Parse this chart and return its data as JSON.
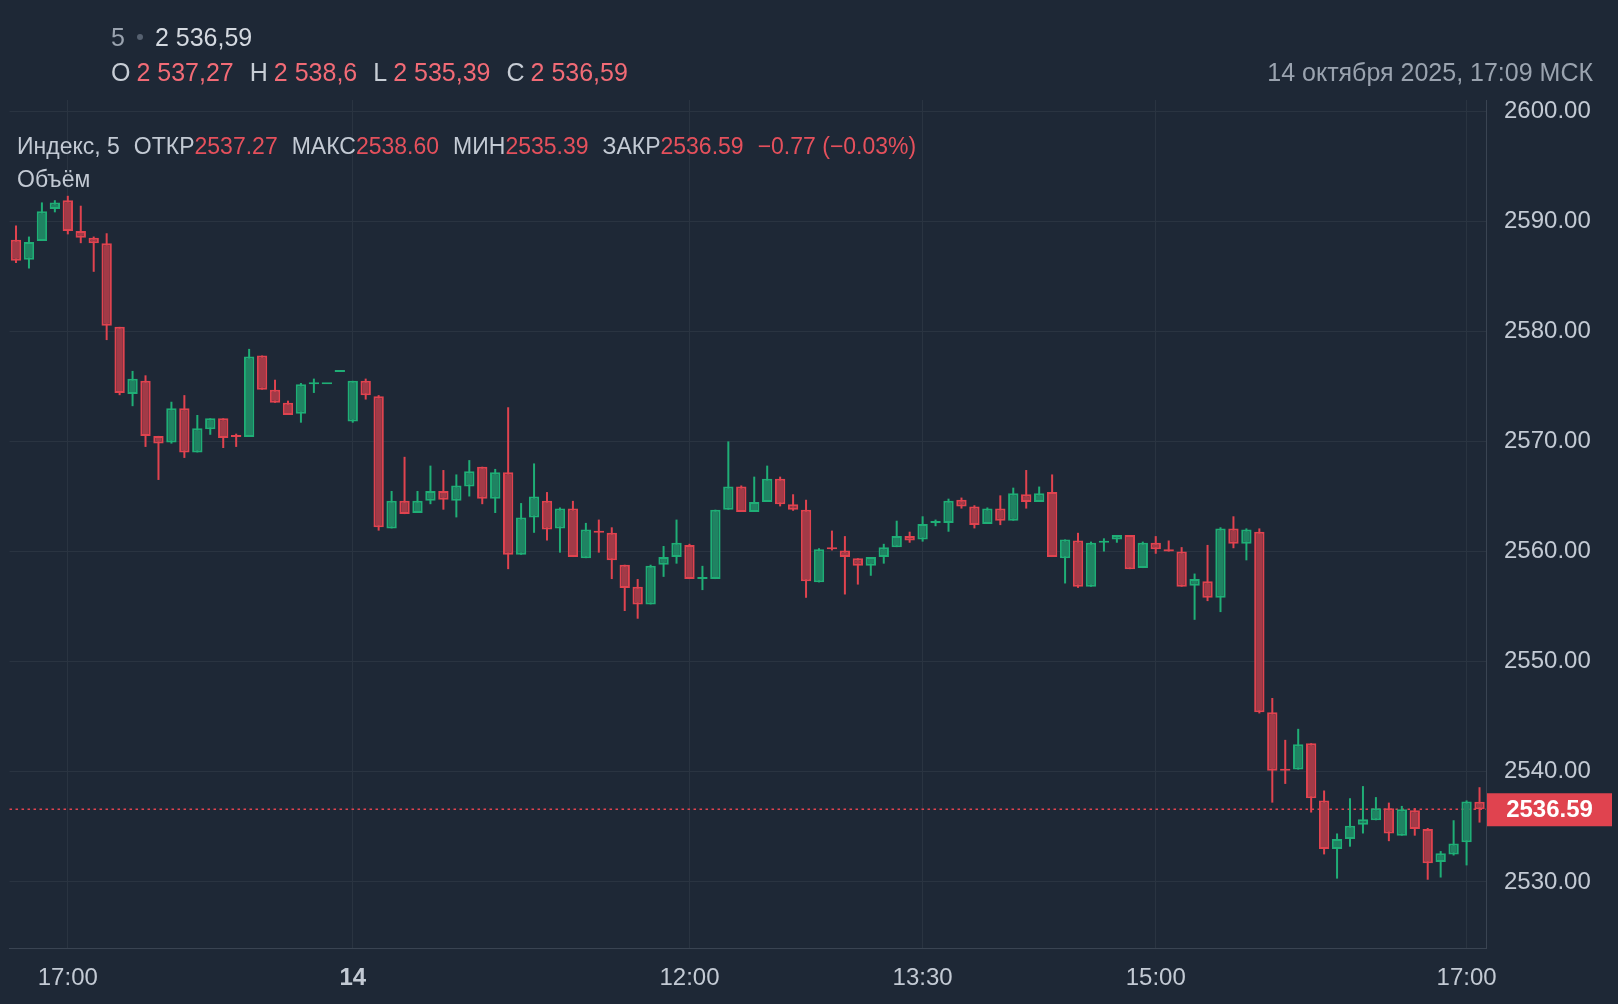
{
  "chart_data": {
    "type": "candlestick",
    "categories": [
      null,
      null,
      null,
      null,
      "17:00",
      null,
      null,
      null,
      null,
      null,
      null,
      null,
      null,
      null,
      null,
      null,
      null,
      null,
      null,
      null,
      null,
      null,
      null,
      null,
      null,
      null,
      "14",
      null,
      null,
      null,
      null,
      null,
      null,
      null,
      null,
      null,
      null,
      null,
      null,
      null,
      null,
      null,
      null,
      null,
      null,
      null,
      null,
      null,
      null,
      null,
      null,
      null,
      "12:00",
      null,
      null,
      null,
      null,
      null,
      null,
      null,
      null,
      null,
      null,
      null,
      null,
      null,
      null,
      null,
      null,
      null,
      "13:30",
      null,
      null,
      null,
      null,
      null,
      null,
      null,
      null,
      null,
      null,
      null,
      null,
      null,
      null,
      null,
      null,
      null,
      "15:00",
      null,
      null,
      null,
      null,
      null,
      null,
      null,
      null,
      null,
      null,
      null,
      null,
      null,
      null,
      null,
      null,
      null,
      null,
      null,
      null,
      null,
      null,
      null,
      "17:00",
      null
    ],
    "ohlc": [
      [
        2588.3,
        2589.6,
        2586.2,
        2586.4
      ],
      [
        2586.5,
        2588.6,
        2585.7,
        2588.1
      ],
      [
        2588.2,
        2591.7,
        2588.2,
        2590.9
      ],
      [
        2591.1,
        2591.9,
        2590.8,
        2591.7
      ],
      [
        2591.9,
        2592.3,
        2588.8,
        2589.1
      ],
      [
        2589.1,
        2591.4,
        2588.0,
        2588.5
      ],
      [
        2588.5,
        2588.6,
        2585.4,
        2588.0
      ],
      [
        2588.0,
        2588.9,
        2579.2,
        2580.5
      ],
      [
        2580.4,
        2580.4,
        2574.2,
        2574.4
      ],
      [
        2574.3,
        2576.4,
        2573.2,
        2575.7
      ],
      [
        2575.5,
        2576.0,
        2569.5,
        2570.5
      ],
      [
        2570.5,
        2570.5,
        2566.5,
        2569.8
      ],
      [
        2569.9,
        2573.6,
        2569.8,
        2573.0
      ],
      [
        2573.0,
        2574.2,
        2568.5,
        2569.0
      ],
      [
        2569.0,
        2572.4,
        2569.0,
        2571.2
      ],
      [
        2571.1,
        2572.1,
        2570.6,
        2572.1
      ],
      [
        2572.1,
        2572.1,
        2569.4,
        2570.3
      ],
      [
        2570.5,
        2570.7,
        2569.5,
        2570.4
      ],
      [
        2570.4,
        2578.4,
        2570.4,
        2577.7
      ],
      [
        2577.8,
        2577.8,
        2574.7,
        2574.7
      ],
      [
        2574.7,
        2575.6,
        2573.5,
        2573.5
      ],
      [
        2573.5,
        2573.7,
        2572.4,
        2572.4
      ],
      [
        2572.5,
        2575.3,
        2571.7,
        2575.2
      ],
      [
        2575.2,
        2575.7,
        2574.4,
        2575.2
      ],
      [
        2575.2,
        2575.2,
        2575.2,
        2575.2
      ],
      [
        2576.3,
        2576.3,
        2576.3,
        2576.3
      ],
      [
        2571.8,
        2575.5,
        2571.7,
        2575.5
      ],
      [
        2575.5,
        2575.7,
        2573.8,
        2574.2
      ],
      [
        2574.1,
        2574.2,
        2561.9,
        2562.2
      ],
      [
        2562.1,
        2565.5,
        2562.1,
        2564.6
      ],
      [
        2564.6,
        2568.6,
        2563.4,
        2563.4
      ],
      [
        2563.5,
        2565.5,
        2563.5,
        2564.6
      ],
      [
        2564.6,
        2567.8,
        2564.3,
        2565.5
      ],
      [
        2565.5,
        2567.4,
        2563.8,
        2564.7
      ],
      [
        2564.6,
        2567.0,
        2563.1,
        2566.0
      ],
      [
        2565.9,
        2568.3,
        2565.0,
        2567.3
      ],
      [
        2567.7,
        2567.7,
        2564.3,
        2564.8
      ],
      [
        2564.8,
        2567.5,
        2563.5,
        2567.2
      ],
      [
        2567.2,
        2573.1,
        2558.4,
        2559.7
      ],
      [
        2559.7,
        2564.4,
        2559.7,
        2563.1
      ],
      [
        2563.1,
        2568.0,
        2561.7,
        2565.0
      ],
      [
        2564.6,
        2565.4,
        2561.0,
        2562.0
      ],
      [
        2562.1,
        2564.0,
        2559.9,
        2563.9
      ],
      [
        2563.9,
        2564.6,
        2559.5,
        2559.5
      ],
      [
        2559.4,
        2562.6,
        2559.4,
        2562.0
      ],
      [
        2561.8,
        2562.9,
        2559.9,
        2561.7
      ],
      [
        2561.7,
        2562.2,
        2557.5,
        2559.2
      ],
      [
        2558.8,
        2558.8,
        2554.6,
        2556.7
      ],
      [
        2556.8,
        2557.5,
        2553.9,
        2555.2
      ],
      [
        2555.2,
        2558.8,
        2555.2,
        2558.7
      ],
      [
        2558.8,
        2560.5,
        2557.7,
        2559.5
      ],
      [
        2559.5,
        2562.9,
        2558.9,
        2560.8
      ],
      [
        2560.6,
        2560.7,
        2557.5,
        2557.5
      ],
      [
        2557.5,
        2558.7,
        2556.5,
        2557.6
      ],
      [
        2557.5,
        2563.8,
        2557.5,
        2563.8
      ],
      [
        2563.8,
        2570.0,
        2563.8,
        2565.9
      ],
      [
        2565.9,
        2566.0,
        2563.6,
        2563.6
      ],
      [
        2563.6,
        2566.8,
        2563.6,
        2564.5
      ],
      [
        2564.5,
        2567.8,
        2564.5,
        2566.6
      ],
      [
        2566.6,
        2566.8,
        2564.1,
        2564.3
      ],
      [
        2564.3,
        2565.2,
        2563.7,
        2563.8
      ],
      [
        2563.8,
        2564.7,
        2555.8,
        2557.3
      ],
      [
        2557.2,
        2560.3,
        2557.2,
        2560.2
      ],
      [
        2560.3,
        2561.9,
        2560.1,
        2560.2
      ],
      [
        2560.1,
        2561.4,
        2556.1,
        2559.5
      ],
      [
        2559.4,
        2559.4,
        2557.0,
        2558.7
      ],
      [
        2558.7,
        2559.5,
        2557.8,
        2559.5
      ],
      [
        2559.5,
        2560.7,
        2558.9,
        2560.4
      ],
      [
        2560.4,
        2562.8,
        2560.4,
        2561.4
      ],
      [
        2561.4,
        2561.8,
        2560.8,
        2561.0
      ],
      [
        2561.1,
        2563.2,
        2560.9,
        2562.5
      ],
      [
        2562.6,
        2562.9,
        2562.3,
        2562.6
      ],
      [
        2562.6,
        2564.8,
        2561.8,
        2564.6
      ],
      [
        2564.7,
        2564.9,
        2563.9,
        2564.1
      ],
      [
        2564.1,
        2564.2,
        2562.1,
        2562.4
      ],
      [
        2562.5,
        2564.0,
        2562.5,
        2563.9
      ],
      [
        2563.9,
        2565.1,
        2562.4,
        2562.8
      ],
      [
        2562.8,
        2565.8,
        2562.8,
        2565.3
      ],
      [
        2565.2,
        2567.4,
        2563.9,
        2564.5
      ],
      [
        2564.5,
        2565.9,
        2564.5,
        2565.3
      ],
      [
        2565.4,
        2567.0,
        2559.5,
        2559.5
      ],
      [
        2559.4,
        2561.1,
        2557.1,
        2561.1
      ],
      [
        2561.0,
        2561.7,
        2556.7,
        2556.8
      ],
      [
        2556.8,
        2560.9,
        2556.8,
        2560.8
      ],
      [
        2560.8,
        2561.2,
        2560.0,
        2560.9
      ],
      [
        2561.1,
        2561.5,
        2560.8,
        2561.5
      ],
      [
        2561.5,
        2561.5,
        2558.4,
        2558.4
      ],
      [
        2558.5,
        2560.9,
        2558.5,
        2560.8
      ],
      [
        2560.8,
        2561.4,
        2559.8,
        2560.2
      ],
      [
        2560.2,
        2561.0,
        2560.0,
        2560.0
      ],
      [
        2560.0,
        2560.4,
        2556.8,
        2556.8
      ],
      [
        2556.9,
        2558.0,
        2553.8,
        2557.5
      ],
      [
        2557.3,
        2560.6,
        2555.5,
        2555.8
      ],
      [
        2555.8,
        2562.2,
        2554.5,
        2562.1
      ],
      [
        2562.1,
        2563.2,
        2560.3,
        2560.7
      ],
      [
        2560.7,
        2562.1,
        2559.2,
        2562.0
      ],
      [
        2561.8,
        2562.1,
        2545.3,
        2545.4
      ],
      [
        2545.4,
        2546.7,
        2537.2,
        2540.1
      ],
      [
        2540.1,
        2542.9,
        2538.9,
        2540.1
      ],
      [
        2540.2,
        2543.9,
        2540.2,
        2542.5
      ],
      [
        2542.6,
        2542.6,
        2536.3,
        2537.6
      ],
      [
        2537.4,
        2538.3,
        2532.5,
        2533.0
      ],
      [
        2533.0,
        2534.4,
        2530.3,
        2533.9
      ],
      [
        2533.9,
        2537.6,
        2533.2,
        2535.1
      ],
      [
        2535.2,
        2538.7,
        2534.4,
        2535.7
      ],
      [
        2535.6,
        2537.7,
        2535.6,
        2536.7
      ],
      [
        2536.7,
        2537.2,
        2533.7,
        2534.4
      ],
      [
        2534.2,
        2536.9,
        2534.2,
        2536.6
      ],
      [
        2536.5,
        2536.7,
        2534.2,
        2534.8
      ],
      [
        2534.8,
        2534.9,
        2530.2,
        2531.7
      ],
      [
        2531.8,
        2532.8,
        2530.4,
        2532.6
      ],
      [
        2532.5,
        2535.6,
        2532.4,
        2533.5
      ],
      [
        2533.6,
        2537.4,
        2531.5,
        2537.3
      ],
      [
        2537.27,
        2538.6,
        2535.39,
        2536.59
      ]
    ],
    "colors": [
      "#e0434f",
      "#1fae76",
      "#1fae76",
      "#1fae76",
      "#e0434f",
      "#e0434f",
      "#e0434f",
      "#e0434f",
      "#e0434f",
      "#1fae76",
      "#e0434f",
      "#e0434f",
      "#1fae76",
      "#e0434f",
      "#1fae76",
      "#1fae76",
      "#e0434f",
      "#e0434f",
      "#1fae76",
      "#e0434f",
      "#e0434f",
      "#e0434f",
      "#1fae76",
      "#1fae76",
      "#1fae76",
      "#1fae76",
      "#1fae76",
      "#e0434f",
      "#e0434f",
      "#1fae76",
      "#e0434f",
      "#1fae76",
      "#1fae76",
      "#e0434f",
      "#1fae76",
      "#1fae76",
      "#e0434f",
      "#1fae76",
      "#e0434f",
      "#1fae76",
      "#1fae76",
      "#e0434f",
      "#1fae76",
      "#e0434f",
      "#1fae76",
      "#e0434f",
      "#e0434f",
      "#e0434f",
      "#e0434f",
      "#1fae76",
      "#1fae76",
      "#1fae76",
      "#e0434f",
      "#1fae76",
      "#1fae76",
      "#1fae76",
      "#e0434f",
      "#1fae76",
      "#1fae76",
      "#e0434f",
      "#e0434f",
      "#e0434f",
      "#1fae76",
      "#e0434f",
      "#e0434f",
      "#e0434f",
      "#1fae76",
      "#1fae76",
      "#1fae76",
      "#e0434f",
      "#1fae76",
      "#1fae76",
      "#1fae76",
      "#e0434f",
      "#e0434f",
      "#1fae76",
      "#e0434f",
      "#1fae76",
      "#e0434f",
      "#1fae76",
      "#e0434f",
      "#1fae76",
      "#e0434f",
      "#1fae76",
      "#1fae76",
      "#1fae76",
      "#e0434f",
      "#1fae76",
      "#e0434f",
      "#e0434f",
      "#e0434f",
      "#1fae76",
      "#e0434f",
      "#1fae76",
      "#e0434f",
      "#1fae76",
      "#e0434f",
      "#e0434f",
      "#e0434f",
      "#1fae76",
      "#e0434f",
      "#e0434f",
      "#1fae76",
      "#1fae76",
      "#1fae76",
      "#1fae76",
      "#e0434f",
      "#1fae76",
      "#e0434f",
      "#e0434f",
      "#1fae76",
      "#1fae76",
      "#1fae76",
      "#e0434f"
    ],
    "ylim": [
      2524,
      2601
    ],
    "yticks": [
      {
        "value": 2530,
        "label": "2530.00"
      },
      {
        "value": 2540,
        "label": "2540.00"
      },
      {
        "value": 2550,
        "label": "2550.00"
      },
      {
        "value": 2560,
        "label": "2560.00"
      },
      {
        "value": 2570,
        "label": "2570.00"
      },
      {
        "value": 2580,
        "label": "2580.00"
      },
      {
        "value": 2590,
        "label": "2590.00"
      },
      {
        "value": 2600,
        "label": "2600.00"
      }
    ],
    "grid": true,
    "ref_lines": [
      {
        "axis": "y",
        "value": 2536.59,
        "label": "2536.59",
        "color": "#e0434f",
        "line_style": "dotted"
      }
    ],
    "annotations": [
      "5",
      "2 536,59",
      "O",
      "2 537,27",
      "H",
      "2 538,6",
      "L",
      "2 535,39",
      "C",
      "2 536,59",
      "14 октября 2025, 17:09 МСК",
      "Индекс, 5",
      "ОТКР",
      "2537.27",
      "МАКС",
      "2538.60",
      "МИН",
      "2535.39",
      "ЗАКР",
      "2536.59",
      "−0.77 (−0.03%)",
      "Объём"
    ]
  }
}
